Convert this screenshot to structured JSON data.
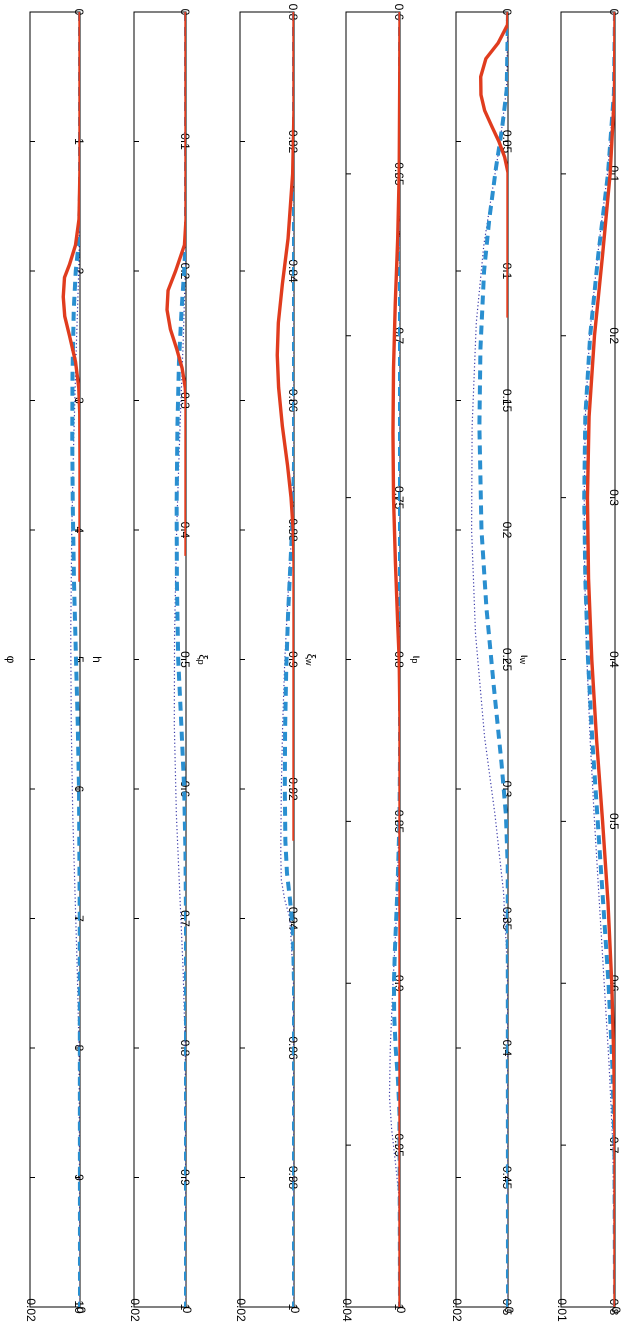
{
  "figure_title": "φ",
  "colors": {
    "red_series": "#e03c1e",
    "blue_dashed": "#2a8fd0",
    "dotted": "#3a3aa8"
  },
  "chart_data": [
    {
      "type": "line",
      "xlabel": "h",
      "xlim": [
        0,
        10
      ],
      "xticks": [
        "0",
        "1",
        "2",
        "3",
        "4",
        "5",
        "6",
        "7",
        "8",
        "9",
        "10"
      ],
      "xtick_values": [
        0,
        1,
        2,
        3,
        4,
        5,
        6,
        7,
        8,
        9,
        10
      ],
      "ylim": [
        0,
        0.02
      ],
      "yticks": [
        "0.02",
        "0"
      ],
      "ytick_values": [
        0.02,
        0
      ],
      "grid": false,
      "series": [
        {
          "style": "solid-red",
          "x": [
            0,
            1.2,
            1.6,
            1.8,
            1.95,
            2.05,
            2.2,
            2.35,
            2.5,
            2.7,
            2.9,
            3.1,
            3.5,
            4.4
          ],
          "y": [
            0,
            0,
            0.0004,
            0.0018,
            0.0042,
            0.0062,
            0.0067,
            0.0061,
            0.0042,
            0.0018,
            0.0005,
            0.0001,
            0,
            0
          ]
        },
        {
          "style": "dashed-blue",
          "x": [
            0,
            1.4,
            1.8,
            2.0,
            2.3,
            2.8,
            3.3,
            3.8,
            4.4,
            5.0,
            5.5,
            6.0,
            7.0,
            10
          ],
          "y": [
            0,
            0,
            0.0006,
            0.0017,
            0.0025,
            0.003,
            0.0031,
            0.0029,
            0.0024,
            0.0016,
            0.0009,
            0.0004,
            0.0001,
            0
          ]
        },
        {
          "style": "dotted",
          "x": [
            0,
            1.4,
            2.0,
            2.6,
            3.3,
            4.0,
            4.8,
            5.5,
            6.2,
            6.8,
            7.4,
            8.0,
            10
          ],
          "y": [
            0,
            0,
            0.0005,
            0.0015,
            0.0025,
            0.0033,
            0.0037,
            0.0035,
            0.0029,
            0.002,
            0.0011,
            0.0004,
            0
          ]
        }
      ]
    },
    {
      "type": "line",
      "xlabel": "ξ_p",
      "xlim": [
        0,
        1
      ],
      "xticks": [
        "0",
        "0.1",
        "0.2",
        "0.3",
        "0.4",
        "0.5",
        "0.6",
        "0.7",
        "0.8",
        "0.9",
        "1"
      ],
      "xtick_values": [
        0,
        0.1,
        0.2,
        0.3,
        0.4,
        0.5,
        0.6,
        0.7,
        0.8,
        0.9,
        1
      ],
      "ylim": [
        0,
        0.02
      ],
      "yticks": [
        "0.02",
        "0"
      ],
      "ytick_values": [
        0.02,
        0
      ],
      "grid": false,
      "series": [
        {
          "style": "solid-red",
          "x": [
            0,
            0.16,
            0.18,
            0.2,
            0.215,
            0.23,
            0.245,
            0.26,
            0.275,
            0.29,
            0.3,
            0.42
          ],
          "y": [
            0,
            0,
            0.0006,
            0.004,
            0.0069,
            0.0073,
            0.006,
            0.0036,
            0.0015,
            0.0003,
            0,
            0
          ]
        },
        {
          "style": "dashed-blue",
          "x": [
            0,
            0.17,
            0.2,
            0.23,
            0.27,
            0.32,
            0.38,
            0.44,
            0.5,
            0.55,
            0.6,
            0.65,
            0.7,
            1
          ],
          "y": [
            0,
            0,
            0.0007,
            0.0017,
            0.0027,
            0.0033,
            0.0036,
            0.0035,
            0.003,
            0.0018,
            0.0007,
            0.0002,
            0,
            0
          ]
        },
        {
          "style": "dotted",
          "x": [
            0,
            0.18,
            0.25,
            0.32,
            0.4,
            0.48,
            0.55,
            0.62,
            0.68,
            0.74,
            0.8,
            1
          ],
          "y": [
            0,
            0,
            0.001,
            0.0023,
            0.0036,
            0.0044,
            0.0045,
            0.0037,
            0.0024,
            0.0011,
            0.0003,
            0
          ]
        }
      ]
    },
    {
      "type": "line",
      "xlabel": "ξ_w",
      "xlim": [
        0.8,
        1
      ],
      "xticks": [
        "0.8",
        "0.82",
        "0.84",
        "0.86",
        "0.88",
        "0.9",
        "0.92",
        "0.94",
        "0.96",
        "0.98",
        "1"
      ],
      "xtick_values": [
        0.8,
        0.82,
        0.84,
        0.86,
        0.88,
        0.9,
        0.92,
        0.94,
        0.96,
        0.98,
        1
      ],
      "ylim": [
        0,
        0.02
      ],
      "yticks": [
        "0.02",
        "0"
      ],
      "ytick_values": [
        0.02,
        0
      ],
      "grid": false,
      "series": [
        {
          "style": "solid-red",
          "x": [
            0.8,
            0.815,
            0.825,
            0.835,
            0.842,
            0.848,
            0.853,
            0.858,
            0.864,
            0.87,
            0.875,
            0.88,
            0.885,
            0.89,
            0.928
          ],
          "y": [
            0,
            0,
            0.0005,
            0.0022,
            0.0043,
            0.0058,
            0.0062,
            0.0057,
            0.0043,
            0.0024,
            0.0011,
            0.0003,
            0,
            0,
            0
          ]
        },
        {
          "style": "dashed-blue",
          "x": [
            0.8,
            0.87,
            0.878,
            0.885,
            0.893,
            0.902,
            0.911,
            0.92,
            0.928,
            0.933,
            0.937,
            0.942,
            0.95,
            1
          ],
          "y": [
            0,
            0,
            0.0005,
            0.0013,
            0.0022,
            0.0029,
            0.0033,
            0.0034,
            0.0032,
            0.0026,
            0.0015,
            0.0004,
            0,
            0
          ]
        },
        {
          "style": "dotted",
          "x": [
            0.8,
            0.87,
            0.88,
            0.89,
            0.9,
            0.91,
            0.92,
            0.93,
            0.934,
            0.937,
            0.94,
            0.95,
            1
          ],
          "y": [
            0,
            0,
            0.0008,
            0.0022,
            0.0034,
            0.0042,
            0.0047,
            0.0049,
            0.0047,
            0.0035,
            0.0015,
            0.0002,
            0
          ]
        }
      ]
    },
    {
      "type": "line",
      "xlabel": "ι_p",
      "xlim": [
        0.6,
        1
      ],
      "xticks": [
        "0.6",
        "0.65",
        "0.7",
        "0.75",
        "0.8",
        "0.85",
        "0.9",
        "0.95",
        "1"
      ],
      "xtick_values": [
        0.6,
        0.65,
        0.7,
        0.75,
        0.8,
        0.85,
        0.9,
        0.95,
        1
      ],
      "ylim": [
        0,
        0.04
      ],
      "yticks": [
        "0.04",
        "0"
      ],
      "ytick_values": [
        0.04,
        0
      ],
      "grid": false,
      "series": [
        {
          "style": "solid-red",
          "x": [
            0.6,
            0.62,
            0.65,
            0.67,
            0.69,
            0.71,
            0.73,
            0.75,
            0.77,
            0.79,
            0.8,
            0.82,
            1
          ],
          "y": [
            0,
            0.0002,
            0.0006,
            0.0017,
            0.0035,
            0.0048,
            0.0052,
            0.0048,
            0.0034,
            0.0016,
            0.0006,
            0,
            0
          ]
        },
        {
          "style": "dashed-blue",
          "x": [
            0.6,
            0.83,
            0.85,
            0.87,
            0.89,
            0.9,
            0.91,
            0.92,
            0.93,
            0.94,
            1
          ],
          "y": [
            0,
            0,
            0.0004,
            0.0018,
            0.0038,
            0.0045,
            0.0043,
            0.0032,
            0.0015,
            0.0004,
            0
          ]
        },
        {
          "style": "dotted",
          "x": [
            0.6,
            0.82,
            0.85,
            0.88,
            0.9,
            0.92,
            0.935,
            0.945,
            0.955,
            0.965,
            1
          ],
          "y": [
            0,
            0,
            0.0006,
            0.0028,
            0.0052,
            0.0072,
            0.0078,
            0.0062,
            0.0035,
            0.001,
            0
          ]
        }
      ]
    },
    {
      "type": "line",
      "xlabel": "ι_w",
      "xlim": [
        0,
        0.5
      ],
      "xticks": [
        "0",
        "0.05",
        "0.1",
        "0.15",
        "0.2",
        "0.25",
        "0.3",
        "0.35",
        "0.4",
        "0.45",
        "0.5"
      ],
      "xtick_values": [
        0,
        0.05,
        0.1,
        0.15,
        0.2,
        0.25,
        0.3,
        0.35,
        0.4,
        0.45,
        0.5
      ],
      "ylim": [
        0,
        0.02
      ],
      "yticks": [
        "0.02",
        "0"
      ],
      "ytick_values": [
        0.02,
        0
      ],
      "grid": false,
      "series": [
        {
          "style": "solid-red",
          "x": [
            0,
            0.005,
            0.012,
            0.018,
            0.025,
            0.032,
            0.038,
            0.044,
            0.05,
            0.056,
            0.062,
            0.118
          ],
          "y": [
            0,
            0.0002,
            0.0038,
            0.0085,
            0.0105,
            0.0104,
            0.009,
            0.0063,
            0.0035,
            0.0013,
            0,
            0
          ]
        },
        {
          "style": "dashed-blue",
          "x": [
            0,
            0.03,
            0.045,
            0.06,
            0.08,
            0.1,
            0.13,
            0.16,
            0.2,
            0.23,
            0.26,
            0.29,
            0.31,
            0.33,
            0.5
          ],
          "y": [
            0,
            0.0005,
            0.0023,
            0.0046,
            0.0072,
            0.0092,
            0.0106,
            0.011,
            0.0102,
            0.0083,
            0.0055,
            0.0025,
            0.0008,
            0.0001,
            0
          ]
        },
        {
          "style": "dotted",
          "x": [
            0,
            0.03,
            0.05,
            0.07,
            0.09,
            0.12,
            0.16,
            0.2,
            0.24,
            0.28,
            0.31,
            0.34,
            0.37,
            0.5
          ],
          "y": [
            0,
            0.0006,
            0.003,
            0.0062,
            0.0093,
            0.0122,
            0.0138,
            0.014,
            0.0125,
            0.009,
            0.005,
            0.0017,
            0.0002,
            0
          ]
        }
      ]
    },
    {
      "type": "line",
      "xlabel": "",
      "xlim": [
        0,
        0.8
      ],
      "xticks": [
        "0",
        "0.1",
        "0.2",
        "0.3",
        "0.4",
        "0.5",
        "0.6",
        "0.7",
        "0.8"
      ],
      "xtick_values": [
        0,
        0.1,
        0.2,
        0.3,
        0.4,
        0.5,
        0.6,
        0.7,
        0.8
      ],
      "ylim": [
        0,
        0.01
      ],
      "yticks": [
        "0.01",
        "0"
      ],
      "ytick_values": [
        0.01,
        0
      ],
      "grid": false,
      "series": [
        {
          "style": "solid-red",
          "x": [
            0,
            0.05,
            0.1,
            0.15,
            0.2,
            0.25,
            0.3,
            0.35,
            0.4,
            0.45,
            0.5,
            0.55,
            0.6,
            0.65,
            0.7,
            0.8
          ],
          "y": [
            0,
            0.0001,
            0.0009,
            0.0023,
            0.0038,
            0.0048,
            0.0051,
            0.0049,
            0.0043,
            0.0034,
            0.0023,
            0.0013,
            0.0006,
            0.0002,
            0,
            0
          ]
        },
        {
          "style": "dashed-blue",
          "x": [
            0,
            0.05,
            0.1,
            0.15,
            0.2,
            0.25,
            0.3,
            0.35,
            0.4,
            0.45,
            0.5,
            0.55,
            0.6,
            0.65,
            0.7,
            0.8
          ],
          "y": [
            0,
            0.0002,
            0.0013,
            0.0031,
            0.0046,
            0.0055,
            0.0057,
            0.0055,
            0.005,
            0.0042,
            0.0032,
            0.0022,
            0.0012,
            0.0005,
            0.0001,
            0
          ]
        },
        {
          "style": "dotted",
          "x": [
            0,
            0.05,
            0.1,
            0.15,
            0.2,
            0.25,
            0.3,
            0.35,
            0.4,
            0.45,
            0.5,
            0.55,
            0.6,
            0.65,
            0.7,
            0.8
          ],
          "y": [
            0,
            0.0002,
            0.0014,
            0.0032,
            0.0047,
            0.0055,
            0.0057,
            0.0056,
            0.0052,
            0.0046,
            0.0038,
            0.0029,
            0.002,
            0.0011,
            0.0004,
            0
          ]
        }
      ]
    }
  ]
}
